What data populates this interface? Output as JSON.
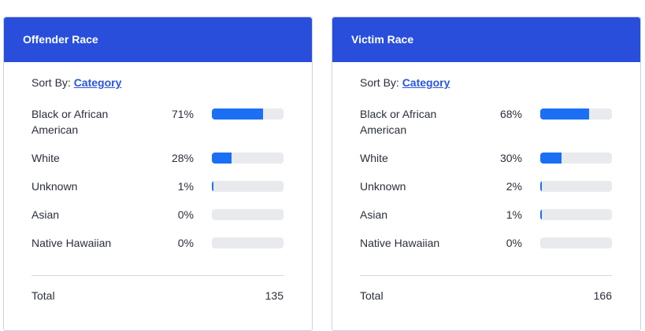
{
  "cards": [
    {
      "title": "Offender Race",
      "sort_label": "Sort By:",
      "sort_value": "Category",
      "rows": [
        {
          "label": "Black or African American",
          "pct": "71%",
          "value": 71
        },
        {
          "label": "White",
          "pct": "28%",
          "value": 28
        },
        {
          "label": "Unknown",
          "pct": "1%",
          "value": 1
        },
        {
          "label": "Asian",
          "pct": "0%",
          "value": 0
        },
        {
          "label": "Native Hawaiian",
          "pct": "0%",
          "value": 0
        }
      ],
      "total_label": "Total",
      "total": "135"
    },
    {
      "title": "Victim Race",
      "sort_label": "Sort By:",
      "sort_value": "Category",
      "rows": [
        {
          "label": "Black or African American",
          "pct": "68%",
          "value": 68
        },
        {
          "label": "White",
          "pct": "30%",
          "value": 30
        },
        {
          "label": "Unknown",
          "pct": "2%",
          "value": 2
        },
        {
          "label": "Asian",
          "pct": "1%",
          "value": 1
        },
        {
          "label": "Native Hawaiian",
          "pct": "0%",
          "value": 0
        }
      ],
      "total_label": "Total",
      "total": "166"
    }
  ],
  "colors": {
    "header": "#284edb",
    "bar": "#1a6ff5",
    "track": "#e8eaed",
    "link": "#2a55e0"
  }
}
